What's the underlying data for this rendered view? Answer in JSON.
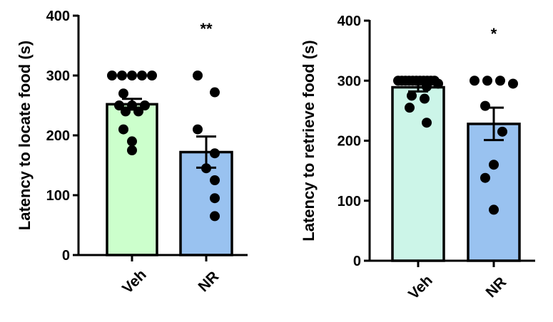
{
  "chart_data": [
    {
      "type": "bar",
      "ylabel": "Latency to locate food (s)",
      "xlabel": "",
      "ylim": [
        0,
        400
      ],
      "yticks": [
        0,
        100,
        200,
        300,
        400
      ],
      "categories": [
        "Veh",
        "NR"
      ],
      "values": [
        252,
        172
      ],
      "sem": [
        9,
        26
      ],
      "bar_colors": [
        "#ccffcc",
        "#99c2f0"
      ],
      "points": [
        [
          300,
          300,
          300,
          300,
          300,
          270,
          250,
          250,
          250,
          240,
          240,
          210,
          190,
          175
        ],
        [
          300,
          272,
          210,
          170,
          145,
          125,
          95,
          65
        ]
      ],
      "significance": [
        "",
        "**"
      ]
    },
    {
      "type": "bar",
      "ylabel": "Latency to retrieve food (s)",
      "xlabel": "",
      "ylim": [
        0,
        400
      ],
      "yticks": [
        0,
        100,
        200,
        300,
        400
      ],
      "categories": [
        "Veh",
        "NR"
      ],
      "values": [
        289,
        228
      ],
      "sem": [
        7,
        27
      ],
      "bar_colors": [
        "#ccf5e8",
        "#99c2f0"
      ],
      "points": [
        [
          300,
          300,
          300,
          300,
          300,
          300,
          300,
          300,
          300,
          300,
          300,
          295,
          290,
          275,
          270,
          255,
          230
        ],
        [
          300,
          300,
          300,
          295,
          258,
          215,
          160,
          138,
          85
        ]
      ],
      "significance": [
        "",
        "*"
      ]
    }
  ]
}
